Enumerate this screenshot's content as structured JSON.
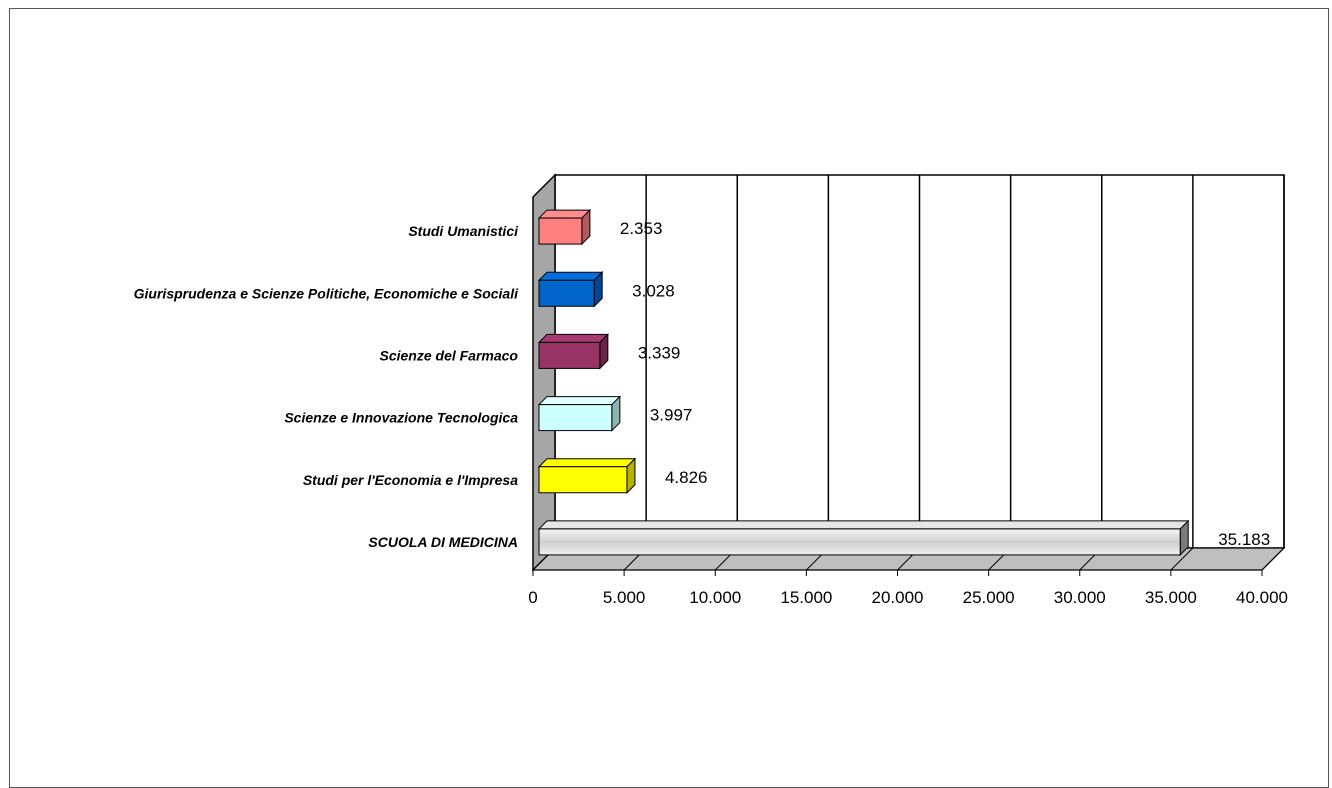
{
  "chart_data": {
    "type": "bar",
    "orientation": "horizontal",
    "style": "3d",
    "categories": [
      "Studi Umanistici",
      "Giurisprudenza e Scienze Politiche, Economiche e Sociali",
      "Scienze del Farmaco",
      "Scienze e Innovazione Tecnologica",
      "Studi per l'Economia e l'Impresa",
      "SCUOLA DI MEDICINA"
    ],
    "values": [
      2353,
      3028,
      3339,
      3997,
      4826,
      35183
    ],
    "value_labels": [
      "2.353",
      "3.028",
      "3.339",
      "3.997",
      "4.826",
      "35.183"
    ],
    "colors": [
      "#ff8080",
      "#0066cc",
      "#993366",
      "#ccffff",
      "#ffff00",
      "#e8e8e8"
    ],
    "xlim": [
      0,
      40000
    ],
    "xticks": [
      0,
      5000,
      10000,
      15000,
      20000,
      25000,
      30000,
      35000,
      40000
    ],
    "xtick_labels": [
      "0",
      "5.000",
      "10.000",
      "15.000",
      "20.000",
      "25.000",
      "30.000",
      "35.000",
      "40.000"
    ],
    "grid": true,
    "title": "",
    "xlabel": "",
    "ylabel": ""
  }
}
